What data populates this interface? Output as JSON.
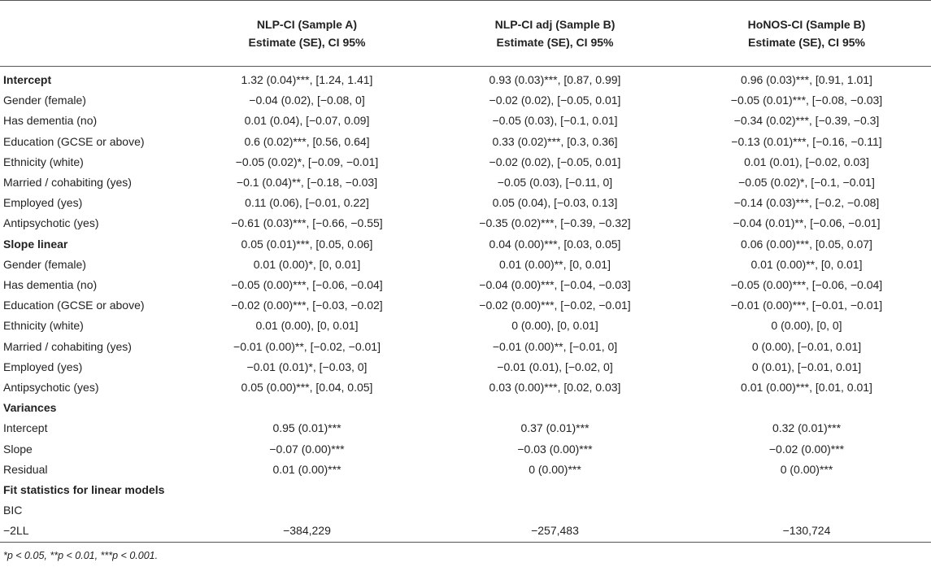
{
  "header": {
    "col0": "",
    "col1": {
      "line1": "NLP-CI (Sample A)",
      "line2": "Estimate (SE), CI 95%"
    },
    "col2": {
      "line1": "NLP-CI adj (Sample B)",
      "line2": "Estimate (SE), CI 95%"
    },
    "col3": {
      "line1": "HoNOS-CI (Sample B)",
      "line2": "Estimate (SE), CI 95%"
    }
  },
  "rows": [
    {
      "label": "Intercept",
      "section": true,
      "c1": "1.32 (0.04)***, [1.24, 1.41]",
      "c2": "0.93 (0.03)***, [0.87, 0.99]",
      "c3": "0.96 (0.03)***, [0.91, 1.01]"
    },
    {
      "label": "Gender (female)",
      "section": false,
      "c1": "−0.04 (0.02), [−0.08, 0]",
      "c2": "−0.02 (0.02), [−0.05, 0.01]",
      "c3": "−0.05 (0.01)***, [−0.08, −0.03]"
    },
    {
      "label": "Has dementia (no)",
      "section": false,
      "c1": "0.01 (0.04), [−0.07, 0.09]",
      "c2": "−0.05 (0.03), [−0.1, 0.01]",
      "c3": "−0.34 (0.02)***, [−0.39, −0.3]"
    },
    {
      "label": "Education (GCSE or above)",
      "section": false,
      "c1": "0.6 (0.02)***, [0.56, 0.64]",
      "c2": "0.33 (0.02)***, [0.3, 0.36]",
      "c3": "−0.13 (0.01)***, [−0.16, −0.11]"
    },
    {
      "label": "Ethnicity (white)",
      "section": false,
      "c1": "−0.05 (0.02)*, [−0.09, −0.01]",
      "c2": "−0.02 (0.02), [−0.05, 0.01]",
      "c3": "0.01 (0.01), [−0.02, 0.03]"
    },
    {
      "label": "Married / cohabiting (yes)",
      "section": false,
      "c1": "−0.1 (0.04)**, [−0.18, −0.03]",
      "c2": "−0.05 (0.03), [−0.11, 0]",
      "c3": "−0.05 (0.02)*, [−0.1, −0.01]"
    },
    {
      "label": "Employed (yes)",
      "section": false,
      "c1": "0.11 (0.06), [−0.01, 0.22]",
      "c2": "0.05 (0.04), [−0.03, 0.13]",
      "c3": "−0.14 (0.03)***, [−0.2, −0.08]"
    },
    {
      "label": "Antipsychotic (yes)",
      "section": false,
      "c1": "−0.61 (0.03)***, [−0.66, −0.55]",
      "c2": "−0.35 (0.02)***, [−0.39, −0.32]",
      "c3": "−0.04 (0.01)**, [−0.06, −0.01]"
    },
    {
      "label": "Slope linear",
      "section": true,
      "c1": "0.05 (0.01)***, [0.05, 0.06]",
      "c2": "0.04 (0.00)***, [0.03, 0.05]",
      "c3": "0.06 (0.00)***, [0.05, 0.07]"
    },
    {
      "label": "Gender (female)",
      "section": false,
      "c1": "0.01 (0.00)*, [0, 0.01]",
      "c2": "0.01 (0.00)**, [0, 0.01]",
      "c3": "0.01 (0.00)**, [0, 0.01]"
    },
    {
      "label": "Has dementia (no)",
      "section": false,
      "c1": "−0.05 (0.00)***, [−0.06, −0.04]",
      "c2": "−0.04 (0.00)***, [−0.04, −0.03]",
      "c3": "−0.05 (0.00)***, [−0.06, −0.04]"
    },
    {
      "label": "Education (GCSE or above)",
      "section": false,
      "c1": "−0.02 (0.00)***, [−0.03, −0.02]",
      "c2": "−0.02 (0.00)***, [−0.02, −0.01]",
      "c3": "−0.01 (0.00)***, [−0.01, −0.01]"
    },
    {
      "label": "Ethnicity (white)",
      "section": false,
      "c1": "0.01 (0.00), [0, 0.01]",
      "c2": "0 (0.00), [0, 0.01]",
      "c3": "0 (0.00), [0, 0]"
    },
    {
      "label": "Married / cohabiting (yes)",
      "section": false,
      "c1": "−0.01 (0.00)**, [−0.02, −0.01]",
      "c2": "−0.01 (0.00)**, [−0.01, 0]",
      "c3": "0 (0.00), [−0.01, 0.01]"
    },
    {
      "label": "Employed (yes)",
      "section": false,
      "c1": "−0.01 (0.01)*, [−0.03, 0]",
      "c2": "−0.01 (0.01), [−0.02, 0]",
      "c3": "0 (0.01), [−0.01, 0.01]"
    },
    {
      "label": "Antipsychotic (yes)",
      "section": false,
      "c1": "0.05 (0.00)***, [0.04, 0.05]",
      "c2": "0.03 (0.00)***, [0.02, 0.03]",
      "c3": "0.01 (0.00)***, [0.01, 0.01]"
    },
    {
      "label": "Variances",
      "section": true,
      "c1": "",
      "c2": "",
      "c3": ""
    },
    {
      "label": "Intercept",
      "section": false,
      "c1": "0.95 (0.01)***",
      "c2": "0.37 (0.01)***",
      "c3": "0.32 (0.01)***"
    },
    {
      "label": "Slope",
      "section": false,
      "c1": "−0.07 (0.00)***",
      "c2": "−0.03 (0.00)***",
      "c3": "−0.02 (0.00)***"
    },
    {
      "label": "Residual",
      "section": false,
      "c1": "0.01 (0.00)***",
      "c2": "0 (0.00)***",
      "c3": "0 (0.00)***"
    },
    {
      "label": "Fit statistics for linear models",
      "section": true,
      "c1": "",
      "c2": "",
      "c3": ""
    },
    {
      "label": "BIC",
      "section": false,
      "c1": "",
      "c2": "",
      "c3": ""
    },
    {
      "label": "−2LL",
      "section": false,
      "c1": "−384,229",
      "c2": "−257,483",
      "c3": "−130,724"
    }
  ],
  "footnote": "*p < 0.05, **p < 0.01, ***p < 0.001."
}
